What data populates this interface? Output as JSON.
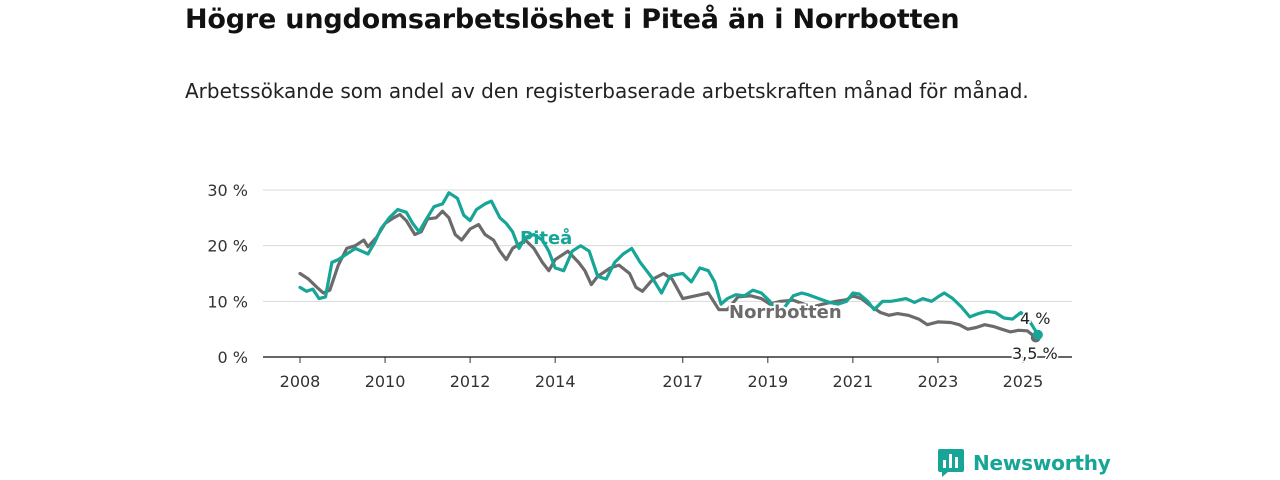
{
  "header": {
    "title": "Högre ungdomsarbetslöshet i Piteå än i Norrbotten",
    "subtitle": "Arbetssökande som andel av den registerbaserade arbetskraften månad för månad."
  },
  "brand": {
    "name": "Newsworthy",
    "icon": "newsworthy-logo-icon",
    "color": "#16a596"
  },
  "chart_data": {
    "type": "line",
    "x_unit": "year",
    "xlim": [
      2008,
      2025.4
    ],
    "ylim": [
      0,
      30
    ],
    "y_ticks": [
      0,
      10,
      20,
      30
    ],
    "y_tick_labels": [
      "0 %",
      "10 %",
      "20 %",
      "30 %"
    ],
    "x_ticks": [
      2008,
      2010,
      2012,
      2014,
      2017,
      2019,
      2021,
      2023,
      2025
    ],
    "x_tick_labels": [
      "2008",
      "2010",
      "2012",
      "2014",
      "2017",
      "2019",
      "2021",
      "2023",
      "2025"
    ],
    "grid": true,
    "legend": "inline",
    "series": [
      {
        "name": "Norrbotten",
        "color": "#6b6b6b",
        "end_label": "3,5 %",
        "points": [
          [
            2008.0,
            15.0
          ],
          [
            2008.2,
            14.0
          ],
          [
            2008.4,
            12.5
          ],
          [
            2008.55,
            11.5
          ],
          [
            2008.7,
            12.0
          ],
          [
            2008.9,
            16.5
          ],
          [
            2009.1,
            19.5
          ],
          [
            2009.3,
            20.0
          ],
          [
            2009.5,
            21.0
          ],
          [
            2009.6,
            19.8
          ],
          [
            2009.8,
            21.5
          ],
          [
            2010.0,
            24.0
          ],
          [
            2010.2,
            25.0
          ],
          [
            2010.35,
            25.6
          ],
          [
            2010.5,
            24.5
          ],
          [
            2010.7,
            22.0
          ],
          [
            2010.85,
            22.5
          ],
          [
            2011.0,
            24.8
          ],
          [
            2011.2,
            25.0
          ],
          [
            2011.35,
            26.2
          ],
          [
            2011.5,
            25.0
          ],
          [
            2011.65,
            22.0
          ],
          [
            2011.8,
            21.0
          ],
          [
            2012.0,
            23.0
          ],
          [
            2012.2,
            23.8
          ],
          [
            2012.35,
            22.0
          ],
          [
            2012.55,
            21.0
          ],
          [
            2012.7,
            19.0
          ],
          [
            2012.85,
            17.5
          ],
          [
            2013.0,
            19.5
          ],
          [
            2013.3,
            21.0
          ],
          [
            2013.5,
            19.5
          ],
          [
            2013.7,
            17.0
          ],
          [
            2013.85,
            15.5
          ],
          [
            2014.0,
            17.5
          ],
          [
            2014.3,
            19.0
          ],
          [
            2014.55,
            17.0
          ],
          [
            2014.7,
            15.5
          ],
          [
            2014.85,
            13.0
          ],
          [
            2015.0,
            14.5
          ],
          [
            2015.3,
            16.0
          ],
          [
            2015.5,
            16.5
          ],
          [
            2015.75,
            15.0
          ],
          [
            2015.9,
            12.5
          ],
          [
            2016.05,
            11.8
          ],
          [
            2016.3,
            14.0
          ],
          [
            2016.55,
            15.0
          ],
          [
            2016.75,
            14.0
          ],
          [
            2017.0,
            10.5
          ],
          [
            2017.3,
            11.0
          ],
          [
            2017.6,
            11.5
          ],
          [
            2017.85,
            8.5
          ],
          [
            2018.05,
            8.5
          ],
          [
            2018.3,
            10.8
          ],
          [
            2018.6,
            11.0
          ],
          [
            2018.85,
            10.5
          ],
          [
            2019.05,
            9.5
          ],
          [
            2019.3,
            10.0
          ],
          [
            2019.6,
            10.2
          ],
          [
            2019.85,
            9.5
          ],
          [
            2020.05,
            9.0
          ],
          [
            2020.3,
            9.5
          ],
          [
            2020.6,
            10.0
          ],
          [
            2020.85,
            10.3
          ],
          [
            2021.0,
            11.0
          ],
          [
            2021.2,
            10.5
          ],
          [
            2021.45,
            9.0
          ],
          [
            2021.65,
            8.0
          ],
          [
            2021.85,
            7.5
          ],
          [
            2022.05,
            7.8
          ],
          [
            2022.3,
            7.5
          ],
          [
            2022.55,
            6.8
          ],
          [
            2022.75,
            5.8
          ],
          [
            2023.0,
            6.3
          ],
          [
            2023.3,
            6.2
          ],
          [
            2023.5,
            5.8
          ],
          [
            2023.7,
            5.0
          ],
          [
            2023.9,
            5.3
          ],
          [
            2024.1,
            5.8
          ],
          [
            2024.3,
            5.5
          ],
          [
            2024.5,
            5.0
          ],
          [
            2024.7,
            4.5
          ],
          [
            2024.9,
            4.8
          ],
          [
            2025.1,
            4.7
          ],
          [
            2025.3,
            3.5
          ]
        ]
      },
      {
        "name": "Piteå",
        "color": "#16a596",
        "end_label": "4 %",
        "points": [
          [
            2008.0,
            12.5
          ],
          [
            2008.15,
            11.8
          ],
          [
            2008.3,
            12.2
          ],
          [
            2008.45,
            10.5
          ],
          [
            2008.6,
            10.8
          ],
          [
            2008.75,
            17.0
          ],
          [
            2008.9,
            17.5
          ],
          [
            2009.1,
            18.5
          ],
          [
            2009.3,
            19.5
          ],
          [
            2009.45,
            19.0
          ],
          [
            2009.6,
            18.5
          ],
          [
            2009.75,
            20.5
          ],
          [
            2009.9,
            23.0
          ],
          [
            2010.1,
            25.0
          ],
          [
            2010.3,
            26.5
          ],
          [
            2010.5,
            26.0
          ],
          [
            2010.65,
            24.0
          ],
          [
            2010.8,
            22.5
          ],
          [
            2010.95,
            24.5
          ],
          [
            2011.15,
            27.0
          ],
          [
            2011.35,
            27.5
          ],
          [
            2011.5,
            29.5
          ],
          [
            2011.7,
            28.5
          ],
          [
            2011.85,
            25.5
          ],
          [
            2012.0,
            24.5
          ],
          [
            2012.15,
            26.5
          ],
          [
            2012.35,
            27.5
          ],
          [
            2012.5,
            28.0
          ],
          [
            2012.7,
            25.0
          ],
          [
            2012.85,
            24.0
          ],
          [
            2013.0,
            22.5
          ],
          [
            2013.15,
            19.5
          ],
          [
            2013.3,
            21.5
          ],
          [
            2013.5,
            22.0
          ],
          [
            2013.7,
            21.0
          ],
          [
            2013.85,
            19.0
          ],
          [
            2014.0,
            16.0
          ],
          [
            2014.2,
            15.5
          ],
          [
            2014.4,
            19.0
          ],
          [
            2014.6,
            20.0
          ],
          [
            2014.8,
            19.0
          ],
          [
            2015.0,
            14.5
          ],
          [
            2015.2,
            14.0
          ],
          [
            2015.4,
            17.0
          ],
          [
            2015.6,
            18.5
          ],
          [
            2015.8,
            19.5
          ],
          [
            2016.0,
            17.0
          ],
          [
            2016.15,
            15.5
          ],
          [
            2016.3,
            14.0
          ],
          [
            2016.5,
            11.5
          ],
          [
            2016.7,
            14.5
          ],
          [
            2016.85,
            14.8
          ],
          [
            2017.0,
            15.0
          ],
          [
            2017.2,
            13.5
          ],
          [
            2017.4,
            16.0
          ],
          [
            2017.6,
            15.5
          ],
          [
            2017.75,
            13.5
          ],
          [
            2017.9,
            9.5
          ],
          [
            2018.05,
            10.5
          ],
          [
            2018.25,
            11.2
          ],
          [
            2018.45,
            11.0
          ],
          [
            2018.65,
            12.0
          ],
          [
            2018.85,
            11.5
          ],
          [
            2019.05,
            10.0
          ],
          [
            2019.2,
            7.8
          ],
          [
            2019.4,
            9.0
          ],
          [
            2019.6,
            11.0
          ],
          [
            2019.8,
            11.5
          ],
          [
            2019.95,
            11.2
          ],
          [
            2020.2,
            10.5
          ],
          [
            2020.45,
            9.8
          ],
          [
            2020.65,
            9.5
          ],
          [
            2020.85,
            10.0
          ],
          [
            2021.0,
            11.5
          ],
          [
            2021.15,
            11.3
          ],
          [
            2021.35,
            10.0
          ],
          [
            2021.5,
            8.5
          ],
          [
            2021.7,
            10.0
          ],
          [
            2021.9,
            10.0
          ],
          [
            2022.05,
            10.2
          ],
          [
            2022.25,
            10.5
          ],
          [
            2022.45,
            9.8
          ],
          [
            2022.65,
            10.5
          ],
          [
            2022.85,
            10.0
          ],
          [
            2023.0,
            10.8
          ],
          [
            2023.15,
            11.5
          ],
          [
            2023.35,
            10.5
          ],
          [
            2023.55,
            9.0
          ],
          [
            2023.75,
            7.2
          ],
          [
            2023.95,
            7.8
          ],
          [
            2024.15,
            8.2
          ],
          [
            2024.35,
            8.0
          ],
          [
            2024.55,
            7.0
          ],
          [
            2024.75,
            6.8
          ],
          [
            2024.95,
            8.0
          ],
          [
            2025.15,
            6.5
          ],
          [
            2025.35,
            4.0
          ]
        ]
      }
    ]
  }
}
